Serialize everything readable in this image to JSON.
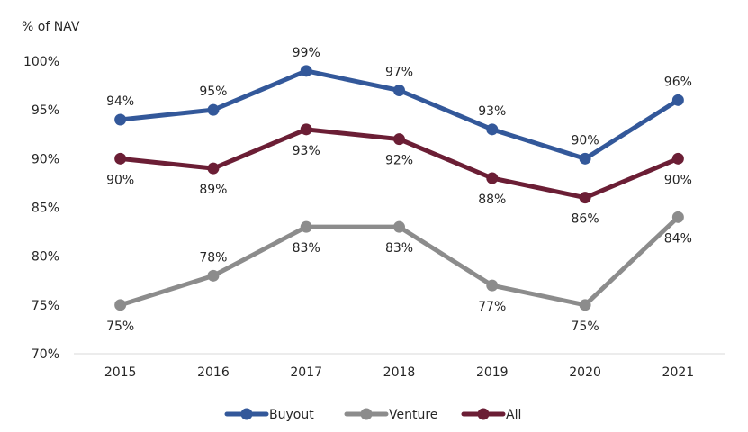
{
  "chart_data": {
    "type": "line",
    "title": "",
    "xlabel": "",
    "ylabel": "% of NAV",
    "categories": [
      "2015",
      "2016",
      "2017",
      "2018",
      "2019",
      "2020",
      "2021"
    ],
    "ylim": [
      70,
      100
    ],
    "yticks": [
      "70%",
      "75%",
      "80%",
      "85%",
      "90%",
      "95%",
      "100%"
    ],
    "grid": false,
    "legend_position": "bottom",
    "series": [
      {
        "name": "Buyout",
        "color": "#33589a",
        "values": [
          94,
          95,
          99,
          97,
          93,
          90,
          96
        ],
        "labels": [
          "94%",
          "95%",
          "99%",
          "97%",
          "93%",
          "90%",
          "96%"
        ]
      },
      {
        "name": "Venture",
        "color": "#8c8c8c",
        "values": [
          75,
          78,
          83,
          83,
          77,
          75,
          84
        ],
        "labels": [
          "75%",
          "78%",
          "83%",
          "83%",
          "77%",
          "75%",
          "84%"
        ]
      },
      {
        "name": "All",
        "color": "#6b1e35",
        "values": [
          90,
          89,
          93,
          92,
          88,
          86,
          90
        ],
        "labels": [
          "90%",
          "89%",
          "93%",
          "92%",
          "88%",
          "86%",
          "90%"
        ]
      }
    ]
  }
}
